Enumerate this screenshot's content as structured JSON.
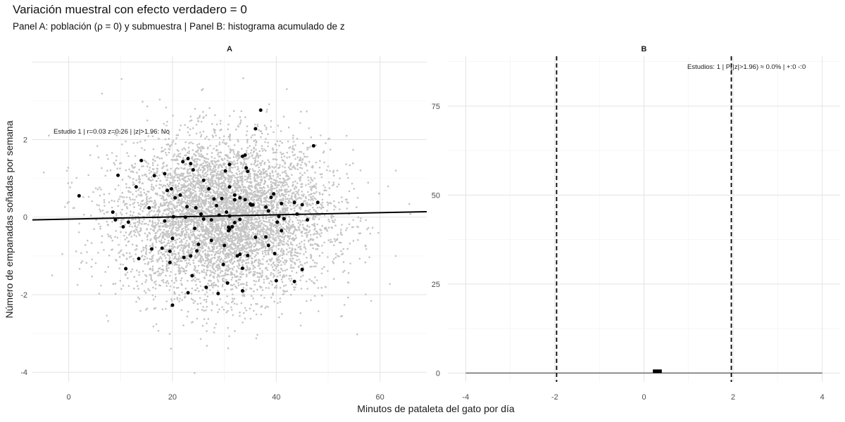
{
  "title": "Variación muestral con efecto verdadero = 0",
  "subtitle": "Panel A: población (ρ = 0) y submuestra | Panel B: histograma acumulado de z",
  "x_axis_title": "Minutos de pataleta del gato por día",
  "y_axis_title": "Número de empanadas soñadas por semana",
  "chart_data": [
    {
      "panel": "A",
      "type": "scatter",
      "strip_label": "A",
      "annotation": "Estudio 1 | r=0.03  z=0.26  |  |z|>1.96: No",
      "xlim": [
        -7,
        69
      ],
      "ylim": [
        -4.25,
        4.15
      ],
      "x_ticks": [
        0,
        20,
        40,
        60
      ],
      "y_ticks": [
        -4,
        -2,
        0,
        2
      ],
      "grid": true,
      "population": {
        "description_n": 6000,
        "x_mean": 30,
        "x_sd": 10,
        "y_mean": 0,
        "y_sd": 1,
        "color": "#c4c4c4"
      },
      "sample": {
        "color": "#000000",
        "points": [
          [
            2,
            0.55
          ],
          [
            8.5,
            0.13
          ],
          [
            9,
            -0.07
          ],
          [
            9.5,
            1.08
          ],
          [
            10.5,
            -0.25
          ],
          [
            11,
            -1.33
          ],
          [
            11.5,
            -0.13
          ],
          [
            13,
            0.78
          ],
          [
            13.5,
            -1.07
          ],
          [
            14,
            1.46
          ],
          [
            15.5,
            0.24
          ],
          [
            16,
            -0.82
          ],
          [
            16.5,
            1.07
          ],
          [
            18,
            -0.8
          ],
          [
            18.5,
            1.12
          ],
          [
            18.5,
            -0.1
          ],
          [
            19,
            0.69
          ],
          [
            19.5,
            -0.88
          ],
          [
            19.5,
            -1.17
          ],
          [
            19.8,
            0.73
          ],
          [
            20,
            -0.55
          ],
          [
            20.2,
            0.01
          ],
          [
            20.5,
            0.5
          ],
          [
            20,
            -2.27
          ],
          [
            21.5,
            0.57
          ],
          [
            22,
            1.43
          ],
          [
            22.2,
            -1.04
          ],
          [
            22.5,
            0.0
          ],
          [
            22.8,
            0.27
          ],
          [
            23,
            1.51
          ],
          [
            23,
            -1.95
          ],
          [
            23.5,
            1.38
          ],
          [
            23.5,
            -1.0
          ],
          [
            23.8,
            -1.51
          ],
          [
            24,
            1.22
          ],
          [
            24.3,
            -0.29
          ],
          [
            24.5,
            0.24
          ],
          [
            24.7,
            -0.87
          ],
          [
            25,
            -0.7
          ],
          [
            25.5,
            0.08
          ],
          [
            26,
            -0.05
          ],
          [
            26,
            0.95
          ],
          [
            26.5,
            -1.81
          ],
          [
            27,
            0.73
          ],
          [
            27.5,
            -0.07
          ],
          [
            27.5,
            -0.6
          ],
          [
            28,
            0.47
          ],
          [
            28.5,
            0.3
          ],
          [
            28.8,
            -1.97
          ],
          [
            29,
            0.05
          ],
          [
            29.5,
            0.48
          ],
          [
            29.8,
            -1.22
          ],
          [
            30,
            -0.73
          ],
          [
            30.2,
            1.19
          ],
          [
            30.4,
            0.13
          ],
          [
            30.6,
            -1.7
          ],
          [
            30.8,
            -0.26
          ],
          [
            30.8,
            -0.35
          ],
          [
            31,
            0.78
          ],
          [
            31,
            -0.31
          ],
          [
            31,
            1.36
          ],
          [
            31,
            0.03
          ],
          [
            31.5,
            -0.25
          ],
          [
            32,
            0.45
          ],
          [
            32,
            0.57
          ],
          [
            32,
            -0.14
          ],
          [
            32.5,
            -1.0
          ],
          [
            33,
            0.5
          ],
          [
            33,
            -0.96
          ],
          [
            33,
            -0.06
          ],
          [
            33.5,
            1.57
          ],
          [
            33.5,
            -1.32
          ],
          [
            33.5,
            -1.9
          ],
          [
            34,
            1.6
          ],
          [
            34,
            0.45
          ],
          [
            34.2,
            1.27
          ],
          [
            34.5,
            1.18
          ],
          [
            34.5,
            -0.99
          ],
          [
            35,
            0.34
          ],
          [
            35.2,
            0.31
          ],
          [
            35.5,
            0.32
          ],
          [
            36,
            2.28
          ],
          [
            36,
            -0.52
          ],
          [
            37,
            2.76
          ],
          [
            38,
            0.26
          ],
          [
            38,
            -0.51
          ],
          [
            38.5,
            -0.73
          ],
          [
            38.5,
            0.16
          ],
          [
            39,
            0.51
          ],
          [
            39.5,
            0.6
          ],
          [
            39.7,
            -0.94
          ],
          [
            40,
            -1.64
          ],
          [
            40.2,
            -0.13
          ],
          [
            40.5,
            0.02
          ],
          [
            41,
            -0.35
          ],
          [
            41,
            0.35
          ],
          [
            41.5,
            -0.04
          ],
          [
            43.5,
            0.38
          ],
          [
            43.5,
            -1.66
          ],
          [
            44,
            0.08
          ],
          [
            45,
            0.32
          ],
          [
            45,
            -1.35
          ],
          [
            46,
            -0.07
          ],
          [
            47.2,
            1.84
          ],
          [
            48,
            0.38
          ]
        ]
      },
      "fit_line": {
        "x": [
          -7,
          69
        ],
        "y": [
          -0.07,
          0.14
        ],
        "color": "#000000"
      }
    },
    {
      "panel": "B",
      "type": "bar",
      "strip_label": "B",
      "annotation": "Estudios: 1 | P(|z|>1.96) ≈ 0.0% | +:0  -:0",
      "xlim": [
        -4.4,
        4.4
      ],
      "ylim": [
        -2.5,
        89
      ],
      "x_ticks": [
        -4,
        -2,
        0,
        2,
        4
      ],
      "y_ticks": [
        0,
        25,
        50,
        75
      ],
      "grid": true,
      "bins": [
        {
          "x_min": 0.2,
          "x_max": 0.4,
          "count": 1
        }
      ],
      "baseline": {
        "x": [
          -4,
          4
        ],
        "y": 0
      },
      "critical_lines": [
        -1.96,
        1.96
      ]
    }
  ]
}
